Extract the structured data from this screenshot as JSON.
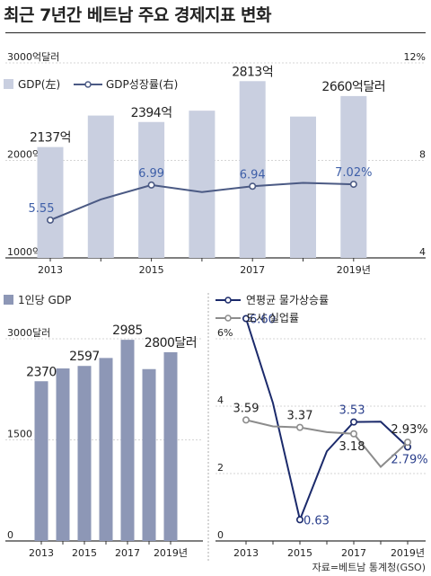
{
  "title": "최근 7년간 베트남 주요 경제지표 변화",
  "source": "자료=베트남 통계청(GSO)",
  "colors": {
    "gdp_bar": "#c9cfe0",
    "gdp_line": "#4b5a84",
    "per_capita_bar": "#8d97b6",
    "inflation_line": "#1b2a6b",
    "unemployment_line": "#8c8c8c",
    "axis": "#333333"
  },
  "chart_data": [
    {
      "type": "bar",
      "name": "gdp-chart",
      "categories": [
        "2013",
        "2014",
        "2015",
        "2016",
        "2017",
        "2018",
        "2019"
      ],
      "tick_labels": [
        "2013",
        "",
        "2015",
        "",
        "2017",
        "",
        "2019년"
      ],
      "left_axis": {
        "ticks": [
          1000,
          2000,
          3000
        ],
        "labels": [
          "1000억",
          "2000억",
          "3000억달러"
        ],
        "ylim": [
          1000,
          3000
        ]
      },
      "right_axis": {
        "ticks": [
          4,
          8,
          12
        ],
        "labels": [
          "4",
          "8",
          "12%"
        ],
        "ylim": [
          4,
          12
        ]
      },
      "legend": [
        {
          "label": "GDP(左)",
          "marker": "box"
        },
        {
          "label": "GDP성장률(右)",
          "marker": "line"
        }
      ],
      "series": [
        {
          "type": "bar",
          "axis": "left",
          "values": [
            2137,
            2460,
            2394,
            2510,
            2813,
            2450,
            2660
          ],
          "data_labels": [
            "2137억",
            "",
            "2394억",
            "",
            "2813억",
            "",
            "2660억달러"
          ]
        },
        {
          "type": "line",
          "axis": "right",
          "values": [
            5.55,
            6.4,
            6.99,
            6.7,
            6.94,
            7.08,
            7.02
          ],
          "data_labels": [
            "5.55",
            "",
            "6.99",
            "",
            "6.94",
            "",
            "7.02%"
          ]
        }
      ]
    },
    {
      "type": "bar",
      "name": "per-capita-chart",
      "categories": [
        "2013",
        "2014",
        "2015",
        "2016",
        "2017",
        "2018",
        "2019"
      ],
      "tick_labels": [
        "2013",
        "",
        "2015",
        "",
        "2017",
        "",
        "2019년"
      ],
      "axis": {
        "ticks": [
          0,
          1500,
          3000
        ],
        "labels": [
          "0",
          "1500",
          "3000달러"
        ],
        "ylim": [
          0,
          3000
        ]
      },
      "legend": [
        {
          "label": "1인당 GDP",
          "marker": "box"
        }
      ],
      "series": [
        {
          "values": [
            2370,
            2560,
            2597,
            2715,
            2985,
            2550,
            2800
          ],
          "data_labels": [
            "2370",
            "",
            "2597",
            "",
            "2985",
            "",
            "2800달러"
          ]
        }
      ]
    },
    {
      "type": "line",
      "name": "price-unemployment-chart",
      "categories": [
        "2013",
        "2014",
        "2015",
        "2016",
        "2017",
        "2018",
        "2019"
      ],
      "tick_labels": [
        "2013",
        "",
        "2015",
        "",
        "2017",
        "",
        "2019년"
      ],
      "axis": {
        "ticks": [
          0,
          2,
          4,
          6
        ],
        "labels": [
          "0",
          "2",
          "4",
          "6%"
        ],
        "ylim": [
          0,
          7
        ]
      },
      "legend": [
        {
          "label": "연평균 물가상승률",
          "marker": "line-dot"
        },
        {
          "label": "도시 실업률",
          "marker": "line-dot"
        }
      ],
      "series": [
        {
          "name": "연평균 물가상승률",
          "values": [
            6.6,
            4.09,
            0.63,
            2.66,
            3.53,
            3.54,
            2.79
          ],
          "data_labels": [
            "6.60",
            "",
            "0.63",
            "",
            "3.53",
            "",
            "2.79%"
          ]
        },
        {
          "name": "도시 실업률",
          "values": [
            3.59,
            3.4,
            3.37,
            3.23,
            3.18,
            2.2,
            2.93
          ],
          "data_labels": [
            "3.59",
            "",
            "3.37",
            "",
            "3.18",
            "",
            "2.93%"
          ]
        }
      ]
    }
  ]
}
